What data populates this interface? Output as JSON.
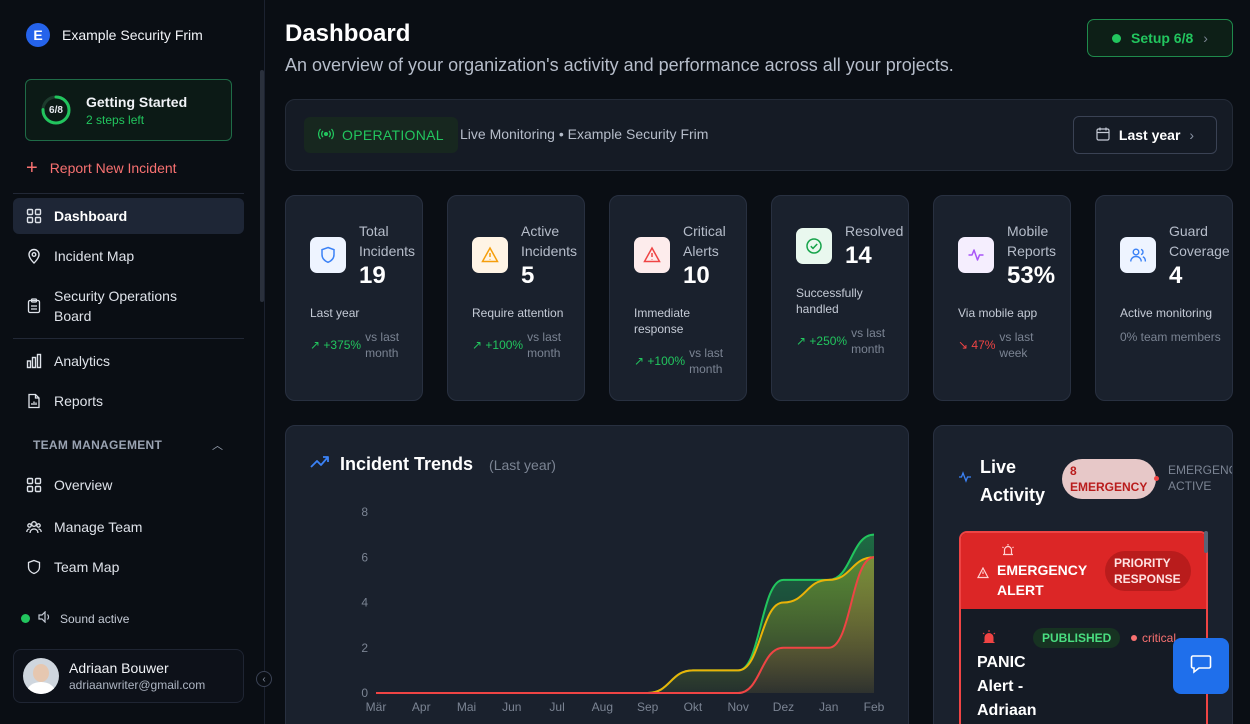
{
  "brand": {
    "initial": "E",
    "name": "Example Security Frim"
  },
  "getting_started": {
    "progress": "6/8",
    "progress_fraction": 0.75,
    "title": "Getting Started",
    "subtitle": "2 steps left"
  },
  "sidebar": {
    "report_label": "Report New Incident",
    "items": [
      {
        "label": "Dashboard",
        "icon": "grid-icon"
      },
      {
        "label": "Incident Map",
        "icon": "map-pin-icon"
      },
      {
        "label": "Security Operations Board",
        "icon": "clipboard-icon"
      },
      {
        "label": "Analytics",
        "icon": "bar-chart-icon"
      },
      {
        "label": "Reports",
        "icon": "file-chart-icon"
      }
    ],
    "section_label": "TEAM MANAGEMENT",
    "team_items": [
      {
        "label": "Overview",
        "icon": "grid-icon"
      },
      {
        "label": "Manage Team",
        "icon": "users-icon"
      },
      {
        "label": "Team Map",
        "icon": "shield-map-icon"
      }
    ],
    "sound_label": "Sound active",
    "user": {
      "name": "Adriaan Bouwer",
      "email": "adriaanwriter@gmail.com"
    }
  },
  "header": {
    "title": "Dashboard",
    "subtitle": "An overview of your organization's activity and performance across all your projects.",
    "setup_label": "Setup 6/8"
  },
  "status": {
    "state": "OPERATIONAL",
    "live_text": "Live Monitoring • Example Security Frim",
    "range_label": "Last year"
  },
  "stats": [
    {
      "label_line1": "Total",
      "label_line2": "Incidents",
      "value": "19",
      "desc": "Last year",
      "trend": "↗ +375%",
      "compare": "vs last month",
      "icon": "shield-icon",
      "color": "#3b82f6",
      "bg": "#eef4ff"
    },
    {
      "label_line1": "Active",
      "label_line2": "Incidents",
      "value": "5",
      "desc": "Require attention",
      "trend": "↗ +100%",
      "compare": "vs last month",
      "icon": "warning-icon",
      "color": "#f59e0b",
      "bg": "#fff4e5"
    },
    {
      "label_line1": "Critical",
      "label_line2": "Alerts",
      "value": "10",
      "desc": "Immediate response",
      "trend": "↗ +100%",
      "compare": "vs last month",
      "icon": "alert-triangle-icon",
      "color": "#ef4444",
      "bg": "#fdecec"
    },
    {
      "label_line1": "Resolved",
      "label_line2": "",
      "value": "14",
      "desc": "Successfully handled",
      "trend": "↗ +250%",
      "compare": "vs last month",
      "icon": "check-circle-icon",
      "color": "#16a34a",
      "bg": "#e9f8ee"
    },
    {
      "label_line1": "Mobile",
      "label_line2": "Reports",
      "value": "53%",
      "desc": "Via mobile app",
      "trend": "↘ 47%",
      "compare": "vs last week",
      "icon": "activity-icon",
      "color": "#a855f7",
      "bg": "#f5eefe"
    },
    {
      "label_line1": "Guard",
      "label_line2": "Coverage",
      "value": "4",
      "desc": "Active monitoring",
      "trend": "0% team members",
      "compare": "",
      "icon": "users-icon",
      "color": "#3b82f6",
      "bg": "#eef4ff"
    }
  ],
  "chart": {
    "title": "Incident Trends",
    "range": "(Last year)"
  },
  "chart_data": {
    "type": "area",
    "title": "Incident Trends",
    "categories": [
      "Mär",
      "Apr",
      "Mai",
      "Jun",
      "Jul",
      "Aug",
      "Sep",
      "Okt",
      "Nov",
      "Dez",
      "Jan",
      "Feb"
    ],
    "ylim": [
      0,
      8
    ],
    "yticks": [
      0,
      2,
      4,
      6,
      8
    ],
    "grid": false,
    "series": [
      {
        "color": "#22c55e",
        "values": [
          0,
          0,
          0,
          0,
          0,
          0,
          0,
          1,
          1,
          5,
          5,
          7
        ]
      },
      {
        "color": "#eab308",
        "values": [
          0,
          0,
          0,
          0,
          0,
          0,
          0,
          1,
          1,
          4,
          5,
          6
        ]
      },
      {
        "color": "#ef4444",
        "values": [
          0,
          0,
          0,
          0,
          0,
          0,
          0,
          0,
          0,
          2,
          2,
          6
        ]
      }
    ]
  },
  "live": {
    "title_line1": "Live",
    "title_line2": "Activity",
    "emergency_line1": "8",
    "emergency_line2": "EMERGENCY",
    "active_line1": "EMERGENCY",
    "active_line2": "ACTIVE",
    "alert": {
      "title_line1": "EMERGENCY",
      "title_line2": "ALERT",
      "priority_line1": "PRIORITY",
      "priority_line2": "RESPONSE",
      "status": "PUBLISHED",
      "severity": "critical",
      "body_line1": "PANIC",
      "body_line2": "Alert -",
      "body_line3": "Adriaan"
    }
  }
}
